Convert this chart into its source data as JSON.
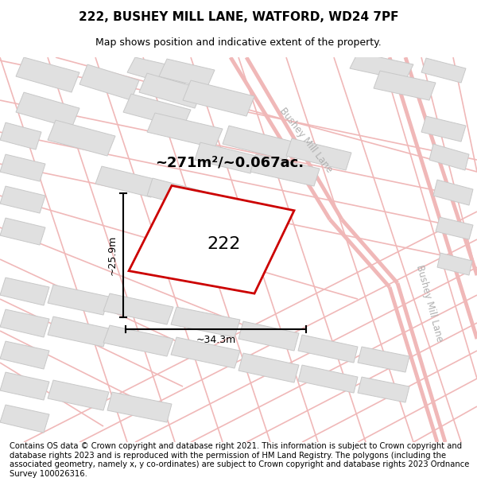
{
  "title": "222, BUSHEY MILL LANE, WATFORD, WD24 7PF",
  "subtitle": "Map shows position and indicative extent of the property.",
  "footer": "Contains OS data © Crown copyright and database right 2021. This information is subject to Crown copyright and database rights 2023 and is reproduced with the permission of HM Land Registry. The polygons (including the associated geometry, namely x, y co-ordinates) are subject to Crown copyright and database rights 2023 Ordnance Survey 100026316.",
  "area_label": "~271m²/~0.067ac.",
  "width_label": "~34.3m",
  "height_label": "~25.9m",
  "plot_number": "222",
  "road_color": "#f0b8b8",
  "road_edge_color": "#e8a8a8",
  "building_color": "#e0e0e0",
  "building_edge_color": "#c8c8c8",
  "plot_outline_color": "#cc0000",
  "street_label_color": "#b0b0b0",
  "title_fontsize": 11,
  "subtitle_fontsize": 9,
  "footer_fontsize": 7.2,
  "map_bg": "#ffffff"
}
